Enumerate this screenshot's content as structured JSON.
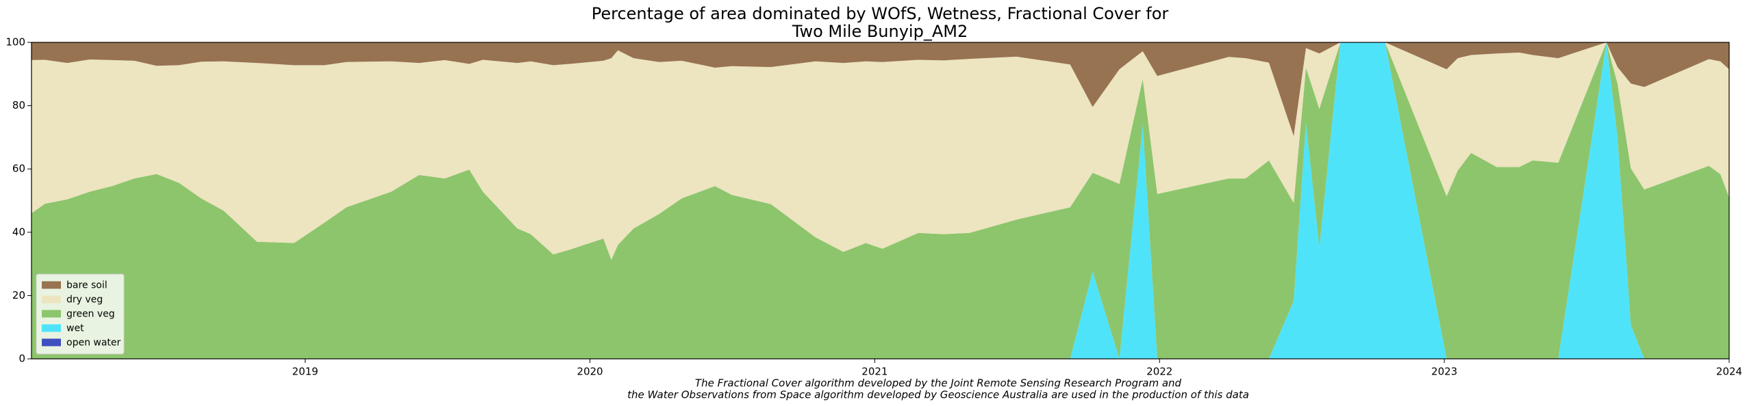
{
  "chart_data": {
    "type": "stacked_area",
    "title": [
      "Percentage of area dominated by WOfS, Wetness, Fractional Cover for",
      "Two Mile Bunyip_AM2"
    ],
    "notes": [
      "The Fractional Cover algorithm developed by the Joint Remote Sensing Research Program and",
      "the Water Observations from Space algorithm developed by Geoscience Australia are used in the production of this data"
    ],
    "x": [
      2018.039,
      2018.086,
      2018.165,
      2018.243,
      2018.322,
      2018.4,
      2018.478,
      2018.557,
      2018.635,
      2018.714,
      2018.831,
      2018.961,
      2019.067,
      2019.145,
      2019.302,
      2019.4,
      2019.49,
      2019.576,
      2019.624,
      2019.745,
      2019.792,
      2019.871,
      2019.929,
      2020.047,
      2020.075,
      2020.098,
      2020.153,
      2020.243,
      2020.322,
      2020.439,
      2020.498,
      2020.635,
      2020.792,
      2020.89,
      2020.969,
      2021.027,
      2021.153,
      2021.243,
      2021.333,
      2021.498,
      2021.686,
      2021.765,
      2021.859,
      2021.941,
      2021.992,
      2022.243,
      2022.302,
      2022.384,
      2022.471,
      2022.514,
      2022.561,
      2022.635,
      2022.792,
      2023.008,
      2023.047,
      2023.094,
      2023.184,
      2023.263,
      2023.31,
      2023.4,
      2023.569,
      2023.608,
      2023.655,
      2023.702,
      2023.929,
      2023.969,
      2024.0
    ],
    "series": [
      {
        "name": "bare soil",
        "color": "#977351",
        "values": [
          5.6,
          5.5,
          6.5,
          5.4,
          5.6,
          5.8,
          7.4,
          7.2,
          6.1,
          6,
          6.5,
          7.2,
          7.2,
          6.2,
          6,
          6.5,
          5.6,
          6.8,
          5.5,
          6.5,
          6,
          7.2,
          6.8,
          5.8,
          5,
          2.5,
          5,
          6.2,
          5.8,
          8,
          7.5,
          7.8,
          6,
          6.5,
          6,
          6.2,
          5.5,
          5.7,
          5.2,
          4.5,
          7,
          20.4,
          8.5,
          2.8,
          10.6,
          4.6,
          5,
          6.4,
          29.6,
          1.8,
          3.5,
          0,
          0,
          8.5,
          5,
          4,
          3.5,
          3.2,
          4,
          5,
          0,
          7.8,
          13,
          14.1,
          5.3,
          6,
          8.5
        ]
      },
      {
        "name": "dry veg",
        "color": "#ede4c0",
        "values": [
          48.4,
          45.5,
          43.1,
          41.8,
          39.8,
          37.2,
          34.2,
          37.2,
          43.2,
          47.2,
          56.5,
          56.2,
          49.8,
          45.9,
          41.2,
          35.4,
          37.4,
          33.4,
          41.7,
          52.3,
          54.6,
          59.8,
          58.7,
          56.2,
          63.7,
          61.5,
          53.8,
          48,
          43.5,
          37.4,
          40.7,
          43.3,
          55.6,
          59.7,
          57.4,
          59,
          54.7,
          54.9,
          55,
          51.5,
          45.1,
          20.8,
          36.2,
          8.8,
          37.3,
          38.4,
          38,
          30.9,
          21.1,
          6.2,
          17.5,
          0,
          0,
          40.1,
          35.5,
          30.9,
          35.9,
          36.2,
          33.3,
          33,
          0,
          5.2,
          26.8,
          32.4,
          33.7,
          35.6,
          40.5
        ]
      },
      {
        "name": "green veg",
        "color": "#8dc56c",
        "values": [
          46,
          49,
          50.4,
          52.8,
          54.6,
          57,
          58.4,
          55.6,
          50.7,
          46.8,
          37,
          36.6,
          43,
          47.9,
          52.8,
          58.1,
          57,
          59.8,
          52.8,
          41.2,
          39.4,
          33,
          34.5,
          38,
          31.3,
          36,
          41.2,
          45.8,
          50.7,
          54.6,
          51.8,
          48.9,
          38.4,
          33.8,
          36.6,
          34.8,
          39.8,
          39.4,
          39.8,
          44,
          47.9,
          31.3,
          55.3,
          14.4,
          52.1,
          57,
          57,
          62.7,
          31,
          17.4,
          43.8,
          0,
          0,
          51.4,
          59.5,
          65.1,
          60.6,
          60.6,
          62.7,
          62,
          0,
          17,
          49.6,
          53.5,
          61,
          58.4,
          51
        ]
      },
      {
        "name": "wet",
        "color": "#4fe3fa",
        "values": [
          0,
          0,
          0,
          0,
          0,
          0,
          0,
          0,
          0,
          0,
          0,
          0,
          0,
          0,
          0,
          0,
          0,
          0,
          0,
          0,
          0,
          0,
          0,
          0,
          0,
          0,
          0,
          0,
          0,
          0,
          0,
          0,
          0,
          0,
          0,
          0,
          0,
          0,
          0,
          0,
          0,
          27.5,
          0,
          74,
          0,
          0,
          0,
          0,
          18.3,
          74.6,
          35.2,
          100,
          100,
          0,
          0,
          0,
          0,
          0,
          0,
          0,
          100,
          70,
          10.6,
          0,
          0,
          0,
          0
        ]
      },
      {
        "name": "open water",
        "color": "#4150c0",
        "values": [
          0,
          0,
          0,
          0,
          0,
          0,
          0,
          0,
          0,
          0,
          0,
          0,
          0,
          0,
          0,
          0,
          0,
          0,
          0,
          0,
          0,
          0,
          0,
          0,
          0,
          0,
          0,
          0,
          0,
          0,
          0,
          0,
          0,
          0,
          0,
          0,
          0,
          0,
          0,
          0,
          0,
          0,
          0,
          0,
          0,
          0,
          0,
          0,
          0,
          0,
          0,
          0,
          0,
          0,
          0,
          0,
          0,
          0,
          0,
          0,
          0,
          0,
          0,
          0,
          0,
          0,
          0
        ]
      }
    ],
    "xlim": [
      2018.039,
      2024.0
    ],
    "xticks": [
      2019,
      2020,
      2021,
      2022,
      2023,
      2024
    ],
    "ylim": [
      0,
      100
    ],
    "yticks": [
      0,
      20,
      40,
      60,
      80,
      100
    ],
    "legend": "lower left"
  }
}
